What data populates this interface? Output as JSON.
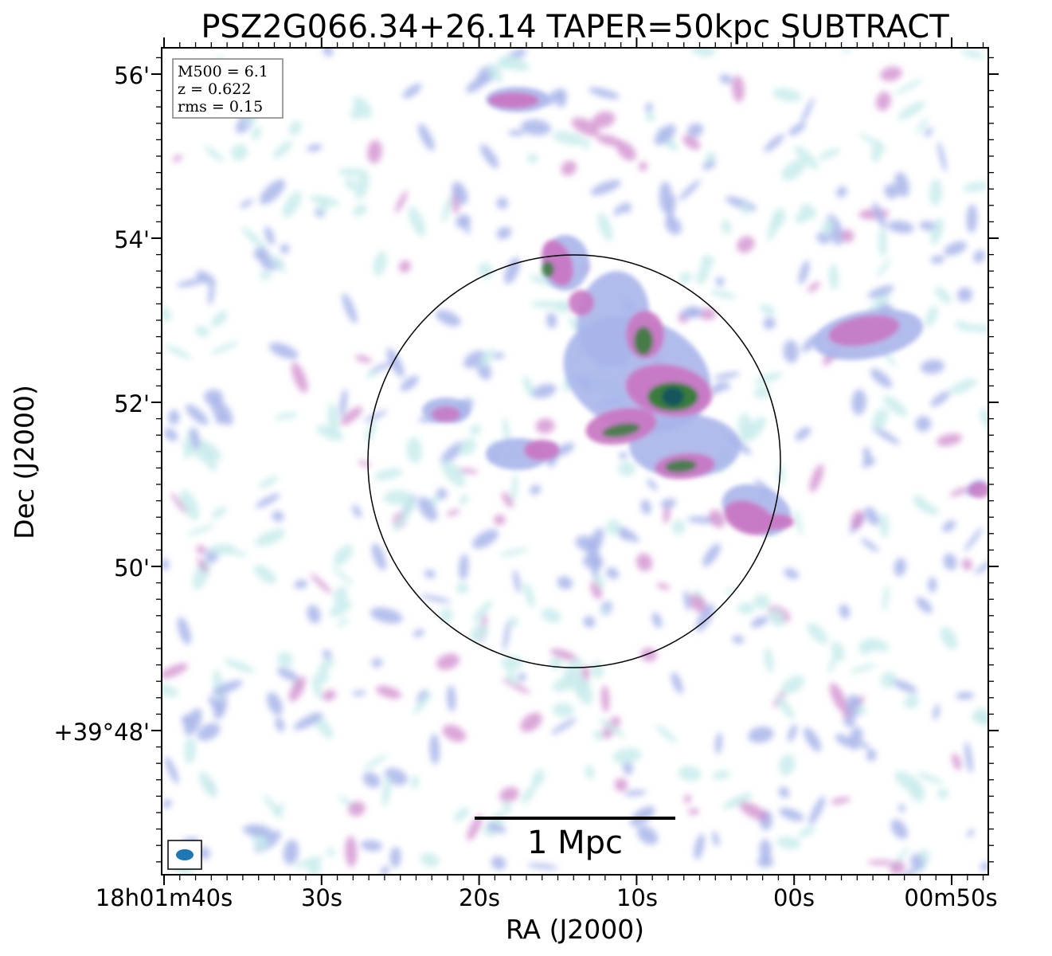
{
  "title": "PSZ2G066.34+26.14 TAPER=50kpc SUBTRACT",
  "info": {
    "line1": "M500 = 6.1",
    "line2": "z = 0.622",
    "line3": "rms = 0.15"
  },
  "xlabel": "RA (J2000)",
  "ylabel": "Dec (J2000)",
  "xticks": [
    "18h01m40s",
    "30s",
    "20s",
    "10s",
    "00s",
    "00m50s"
  ],
  "yticks": [
    "56'",
    "54'",
    "52'",
    "50'",
    "+39°48'"
  ],
  "scalebar": {
    "label": "1 Mpc"
  },
  "colors": {
    "low": "#c9ecec",
    "lowmid": "#a9b5ea",
    "mid": "#c878c4",
    "high": "#2f7d34",
    "peak": "#16525e",
    "beam": "#1f77b4"
  }
}
